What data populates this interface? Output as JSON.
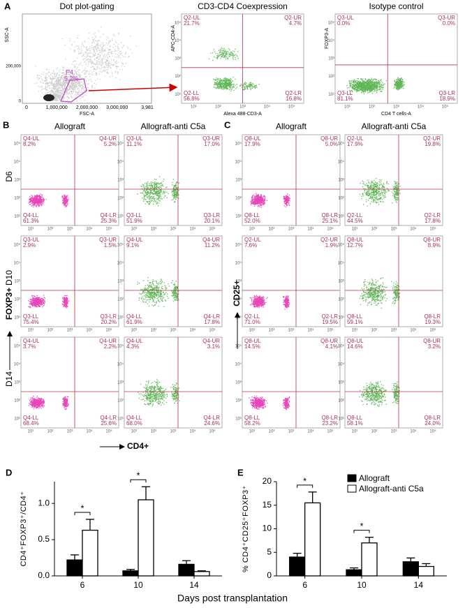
{
  "panel_a": {
    "label": "A",
    "plots": [
      {
        "title": "Dot plot-gating",
        "x_label": "FSC-A",
        "y_label": "SSC-A",
        "x_ticks": [
          "0",
          "1,000,000",
          "2,000,000",
          "3,000,000",
          "3,981"
        ],
        "y_ticks": [
          "200,000",
          "0"
        ],
        "gate": {
          "name": "P4",
          "percent": "5.2%"
        }
      },
      {
        "title": "CD3-CD4 Coexpression",
        "x_label": "Alexa 488-CD3-A",
        "y_label": "APC-CD4-A",
        "color": "#3aa52e",
        "quadrants": [
          {
            "name": "Q2-UL",
            "percent": "21.7%"
          },
          {
            "name": "Q2-UR",
            "percent": "4.7%"
          },
          {
            "name": "Q2-LL",
            "percent": "56.8%"
          },
          {
            "name": "Q2-LR",
            "percent": "16.8%"
          }
        ]
      },
      {
        "title": "Isotype control",
        "x_label": "CD4 T cells-A",
        "y_label": "FOXP3-A",
        "color": "#3aa52e",
        "quadrants": [
          {
            "name": "Q3-UL",
            "percent": "0.0%"
          },
          {
            "name": "Q3-UR",
            "percent": "0.0%"
          },
          {
            "name": "Q3-LL",
            "percent": "81.1%"
          },
          {
            "name": "Q3-LR",
            "percent": "18.9%"
          }
        ]
      }
    ]
  },
  "log_ticks": [
    "10¹",
    "10²",
    "10³",
    "10⁴",
    "10⁵"
  ],
  "panel_b": {
    "label": "B",
    "columns": [
      "Allograft",
      "Allograft-anti C5a"
    ],
    "rows": [
      "D6",
      "D10",
      "D14"
    ],
    "y_label": "FOXP3+",
    "x_label": "CD4+",
    "colors": [
      "#e01aa8",
      "#3aa52e"
    ],
    "plots": [
      [
        {
          "quadrants": [
            {
              "name": "Q4-UL",
              "percent": "8.2%"
            },
            {
              "name": "Q4-UR",
              "percent": "5.2%"
            },
            {
              "name": "Q4-LL",
              "percent": "61.3%"
            },
            {
              "name": "Q4-LR",
              "percent": "25.3%"
            }
          ]
        },
        {
          "quadrants": [
            {
              "name": "Q3-UL",
              "percent": "11.1%"
            },
            {
              "name": "Q3-UR",
              "percent": "17.0%"
            },
            {
              "name": "Q3-LL",
              "percent": "51.9%"
            },
            {
              "name": "Q3-LR",
              "percent": "20.1%"
            }
          ]
        }
      ],
      [
        {
          "quadrants": [
            {
              "name": "Q3-UL",
              "percent": "2.9%"
            },
            {
              "name": "Q3-UR",
              "percent": "1.5%"
            },
            {
              "name": "Q3-LL",
              "percent": "75.4%"
            },
            {
              "name": "Q3-LR",
              "percent": "20.2%"
            }
          ]
        },
        {
          "quadrants": [
            {
              "name": "Q4-UL",
              "percent": "9.1%"
            },
            {
              "name": "Q4-UR",
              "percent": "11.2%"
            },
            {
              "name": "Q4-LL",
              "percent": "61.9%"
            },
            {
              "name": "Q4-LR",
              "percent": "17.8%"
            }
          ]
        }
      ],
      [
        {
          "quadrants": [
            {
              "name": "Q4-UL",
              "percent": "3.7%"
            },
            {
              "name": "Q4-UR",
              "percent": "2.2%"
            },
            {
              "name": "Q4-LL",
              "percent": "68.4%"
            },
            {
              "name": "Q4-LR",
              "percent": "25.6%"
            }
          ]
        },
        {
          "quadrants": [
            {
              "name": "Q4-UL",
              "percent": "4.3%"
            },
            {
              "name": "Q4-UR",
              "percent": "3.1%"
            },
            {
              "name": "Q4-LL",
              "percent": "68.0%"
            },
            {
              "name": "Q4-LR",
              "percent": "24.6%"
            }
          ]
        }
      ]
    ]
  },
  "panel_c": {
    "label": "C",
    "columns": [
      "Allograft",
      "Allograft-anti C5a"
    ],
    "rows": [
      "D6",
      "D10",
      "D14"
    ],
    "y_label": "CD25+",
    "colors": [
      "#e01aa8",
      "#3aa52e"
    ],
    "plots": [
      [
        {
          "quadrants": [
            {
              "name": "Q8-UL",
              "percent": "17.9%"
            },
            {
              "name": "Q8-UR",
              "percent": "5.0%"
            },
            {
              "name": "Q8-LL",
              "percent": "52.0%"
            },
            {
              "name": "Q8-LR",
              "percent": "25.1%"
            }
          ]
        },
        {
          "quadrants": [
            {
              "name": "Q2-UL",
              "percent": "17.9%"
            },
            {
              "name": "Q2-UR",
              "percent": "19.8%"
            },
            {
              "name": "Q2-LL",
              "percent": "44.5%"
            },
            {
              "name": "Q2-LR",
              "percent": "17.8%"
            }
          ]
        }
      ],
      [
        {
          "quadrants": [
            {
              "name": "Q2-UL",
              "percent": "7.6%"
            },
            {
              "name": "Q2-UR",
              "percent": "1.9%"
            },
            {
              "name": "Q2-LL",
              "percent": "71.0%"
            },
            {
              "name": "Q2-LR",
              "percent": "19.5%"
            }
          ]
        },
        {
          "quadrants": [
            {
              "name": "Q8-UL",
              "percent": "12.7%"
            },
            {
              "name": "Q8-UR",
              "percent": "8.9%"
            },
            {
              "name": "Q8-LL",
              "percent": "59.1%"
            },
            {
              "name": "Q8-LR",
              "percent": "19.3%"
            }
          ]
        }
      ],
      [
        {
          "quadrants": [
            {
              "name": "Q8-UL",
              "percent": "14.5%"
            },
            {
              "name": "Q8-UR",
              "percent": "4.1%"
            },
            {
              "name": "Q8-LL",
              "percent": "58.2%"
            },
            {
              "name": "Q8-LR",
              "percent": "23.2%"
            }
          ]
        },
        {
          "quadrants": [
            {
              "name": "Q8-UL",
              "percent": "14.6%"
            },
            {
              "name": "Q8-UR",
              "percent": "3.2%"
            },
            {
              "name": "Q8-LL",
              "percent": "58.1%"
            },
            {
              "name": "Q8-LR",
              "percent": "24.0%"
            }
          ]
        }
      ]
    ]
  },
  "chart_data": [
    {
      "type": "bar",
      "label": "D",
      "y_label": "CD4⁺FOXP3⁺/CD4⁺",
      "x_label": "Days post transplantation",
      "categories": [
        "6",
        "10",
        "14"
      ],
      "series": [
        {
          "color": "#000000",
          "values": [
            0.22,
            0.07,
            0.16
          ],
          "errors": [
            0.07,
            0.02,
            0.05
          ]
        },
        {
          "color": "#ffffff",
          "values": [
            0.63,
            1.05,
            0.06
          ],
          "errors": [
            0.15,
            0.18,
            0.01
          ]
        }
      ],
      "ylim": [
        0,
        1.3
      ],
      "yticks": [
        {
          "value": 0,
          "label": "0.0"
        },
        {
          "value": 0.5,
          "label": "0.5"
        },
        {
          "value": 1,
          "label": "1.0"
        }
      ],
      "annotations": [
        {
          "text": "*",
          "category": "6"
        },
        {
          "text": "*",
          "category": "10"
        }
      ],
      "legend": false
    },
    {
      "type": "bar",
      "label": "E",
      "y_label": "% CD4⁺CD25⁺FOXP3⁺",
      "categories": [
        "6",
        "10",
        "14"
      ],
      "series": [
        {
          "name": "Allograft",
          "color": "#000000",
          "values": [
            4.0,
            1.3,
            3.0
          ],
          "errors": [
            0.8,
            0.4,
            0.8
          ]
        },
        {
          "name": "Allograft-anti C5a",
          "color": "#ffffff",
          "values": [
            15.5,
            7.0,
            2.0
          ],
          "errors": [
            2.3,
            1.2,
            0.6
          ]
        }
      ],
      "ylim": [
        0,
        20
      ],
      "yticks": [
        0,
        5,
        10,
        15,
        20
      ],
      "annotations": [
        {
          "text": "*",
          "category": "6"
        },
        {
          "text": "*",
          "category": "10"
        }
      ],
      "legend": true
    }
  ]
}
